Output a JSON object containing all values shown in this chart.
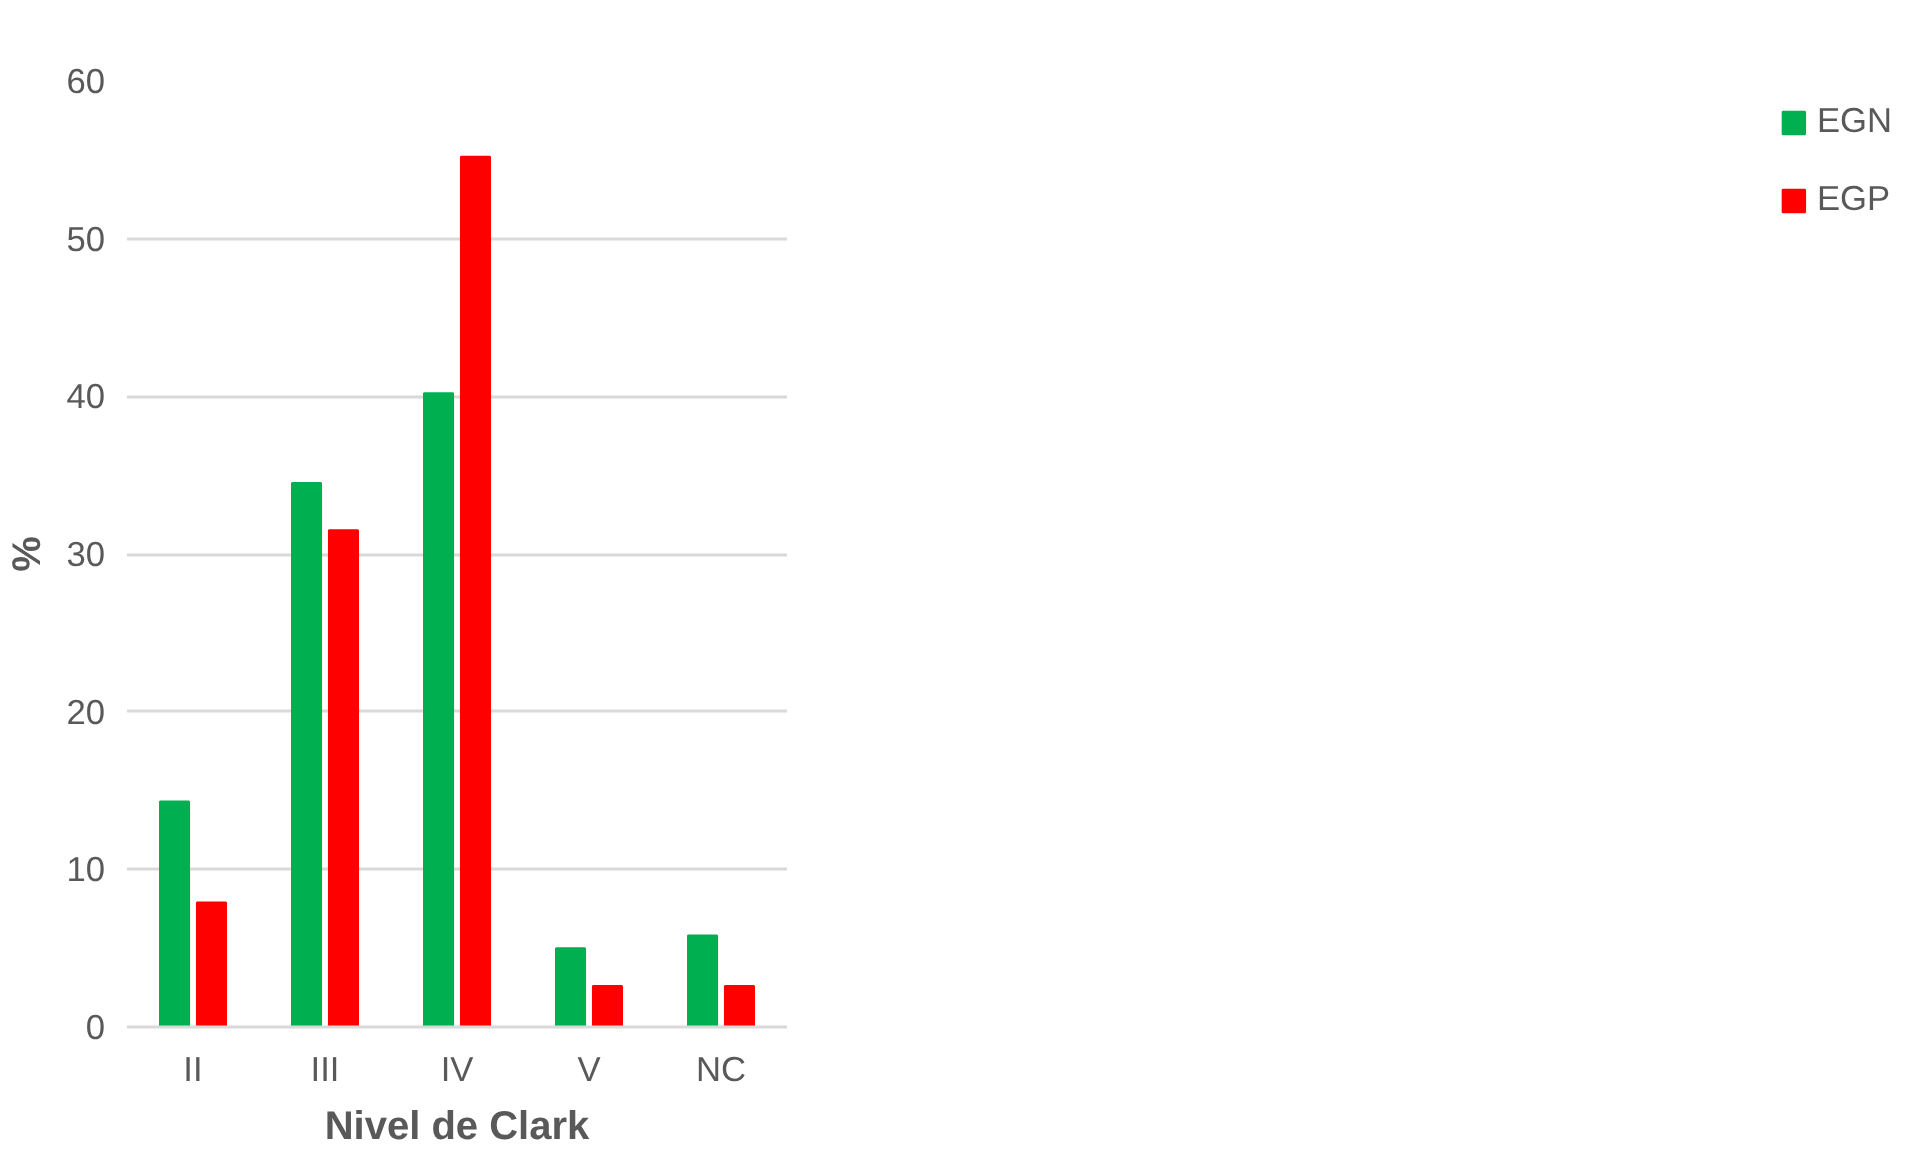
{
  "chart_data": {
    "type": "bar",
    "xlabel": "Nivel de Clark",
    "ylabel": "%",
    "categories": [
      "II",
      "III",
      "IV",
      "V",
      "NC"
    ],
    "series": [
      {
        "name": "EGN",
        "color": "#00b050",
        "values": [
          14.3,
          34.5,
          40.2,
          5.0,
          5.8
        ]
      },
      {
        "name": "EGP",
        "color": "#ff0000",
        "values": [
          7.9,
          31.5,
          55.2,
          2.6,
          2.6
        ]
      }
    ],
    "ylim": [
      0,
      60
    ],
    "yticks": [
      0,
      10,
      20,
      30,
      40,
      50,
      60
    ],
    "grid": "y",
    "legend": "right"
  }
}
